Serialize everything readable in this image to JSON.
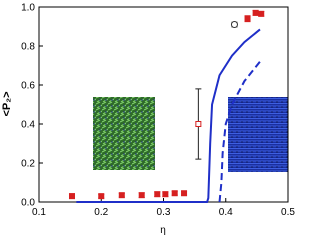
{
  "chart_data": {
    "type": "scatter",
    "xlabel": "η",
    "ylabel": "<P₂>",
    "xlim": [
      0.1,
      0.5
    ],
    "xticks": [
      0.1,
      0.2,
      0.3,
      0.4,
      0.5
    ],
    "ylim": [
      0,
      1.0
    ],
    "yticks": [
      {
        "value": 0,
        "label": "0.0"
      },
      {
        "value": 0.2,
        "label": "0.2"
      },
      {
        "value": 0.4,
        "label": "0.4"
      },
      {
        "value": 0.6,
        "label": "0.6"
      },
      {
        "value": 0.8,
        "label": "0.8"
      },
      {
        "value": 1.0,
        "label": "1.0"
      }
    ],
    "series": [
      {
        "kind": "markers",
        "marker": "square",
        "color": "#d62020",
        "x": [
          0.153,
          0.2,
          0.233,
          0.265,
          0.29,
          0.303,
          0.318,
          0.333
        ],
        "values": [
          0.03,
          0.03,
          0.035,
          0.035,
          0.04,
          0.04,
          0.045,
          0.045
        ],
        "errors": [
          0.012,
          0.01,
          0.01,
          0.012,
          0.012,
          0.012,
          0.01,
          0.01
        ]
      },
      {
        "kind": "markers",
        "marker": "square-open",
        "color": "#d62020",
        "x": [
          0.356
        ],
        "values": [
          0.4
        ],
        "errors": [
          0.18
        ]
      },
      {
        "kind": "markers",
        "marker": "circle-open",
        "color": "#333333",
        "x": [
          0.414
        ],
        "values": [
          0.91
        ],
        "errors": [
          0.012
        ]
      },
      {
        "kind": "markers",
        "marker": "square",
        "color": "#d62020",
        "x": [
          0.435,
          0.448,
          0.457
        ],
        "values": [
          0.94,
          0.97,
          0.965
        ],
        "errors": [
          0.015,
          0.012,
          0.012
        ]
      },
      {
        "kind": "line",
        "dash": false,
        "color": "#1f2fc8",
        "x": [
          0.16,
          0.37,
          0.372,
          0.375,
          0.378,
          0.39,
          0.41,
          0.43,
          0.455
        ],
        "values": [
          0,
          0,
          0.02,
          0.3,
          0.5,
          0.65,
          0.75,
          0.82,
          0.885
        ]
      },
      {
        "kind": "line",
        "dash": true,
        "color": "#1f2fc8",
        "x": [
          0.39,
          0.393,
          0.395,
          0.4,
          0.41,
          0.43,
          0.455
        ],
        "values": [
          0,
          0.1,
          0.25,
          0.4,
          0.5,
          0.62,
          0.72
        ]
      }
    ]
  }
}
